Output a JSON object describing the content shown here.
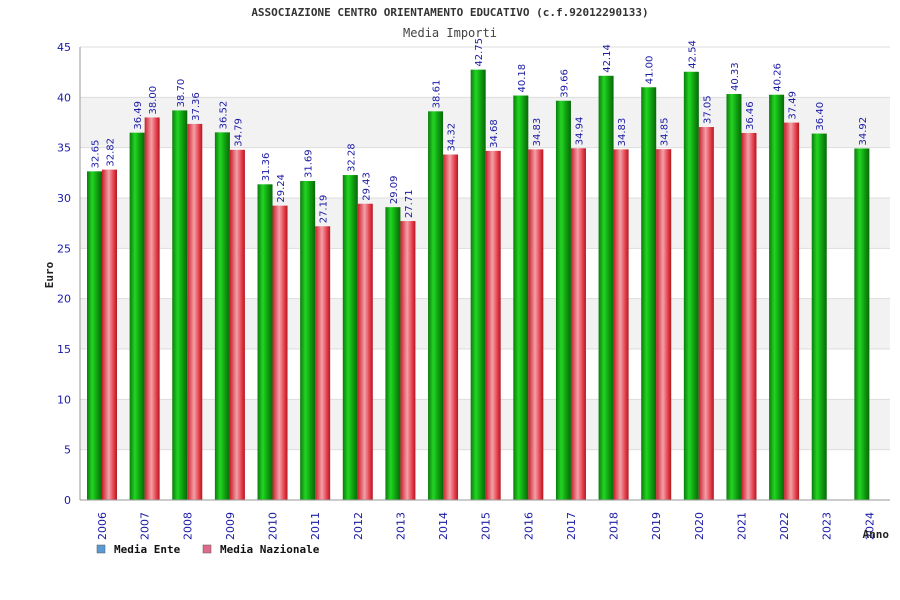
{
  "colors": {
    "ente": "#18b418",
    "nazionale": "#e8404c",
    "legend_ente": "#5b9bd5",
    "legend_nazionale": "#e06a8c",
    "band": "#f2f2f2",
    "grid": "#dddddd",
    "axis": "#999999",
    "ticks": "#1a1aa6"
  },
  "chart_data": {
    "type": "bar",
    "title": "ASSOCIAZIONE CENTRO ORIENTAMENTO EDUCATIVO (c.f.92012290133)",
    "subtitle": "Media Importi",
    "xlabel": "Anno",
    "ylabel": "Euro",
    "ylim": [
      0,
      45
    ],
    "yticks": [
      "0",
      "5",
      "10",
      "15",
      "20",
      "25",
      "30",
      "35",
      "40",
      "45"
    ],
    "grid": true,
    "legend_position": "bottom-left",
    "categories": [
      "2006",
      "2007",
      "2008",
      "2009",
      "2010",
      "2011",
      "2012",
      "2013",
      "2014",
      "2015",
      "2016",
      "2017",
      "2018",
      "2019",
      "2020",
      "2021",
      "2022",
      "2023",
      "2024"
    ],
    "series": [
      {
        "name": "Media Ente",
        "values": [
          32.65,
          36.49,
          38.7,
          36.52,
          31.36,
          31.69,
          32.28,
          29.09,
          38.61,
          42.75,
          40.18,
          39.66,
          42.14,
          41.0,
          42.54,
          40.33,
          40.26,
          36.4,
          34.92
        ],
        "labels": [
          "32.65",
          "36.49",
          "38.70",
          "36.52",
          "31.36",
          "31.69",
          "32.28",
          "29.09",
          "38.61",
          "42.75",
          "40.18",
          "39.66",
          "42.14",
          "41.00",
          "42.54",
          "40.33",
          "40.26",
          "36.40",
          "34.92"
        ]
      },
      {
        "name": "Media Nazionale",
        "values": [
          32.82,
          38.0,
          37.36,
          34.79,
          29.24,
          27.19,
          29.43,
          27.71,
          34.32,
          34.68,
          34.83,
          34.94,
          34.83,
          34.85,
          37.05,
          36.46,
          37.49,
          null,
          null
        ],
        "labels": [
          "32.82",
          "38.00",
          "37.36",
          "34.79",
          "29.24",
          "27.19",
          "29.43",
          "27.71",
          "34.32",
          "34.68",
          "34.83",
          "34.94",
          "34.83",
          "34.85",
          "37.05",
          "36.46",
          "37.49",
          "",
          ""
        ]
      }
    ]
  }
}
